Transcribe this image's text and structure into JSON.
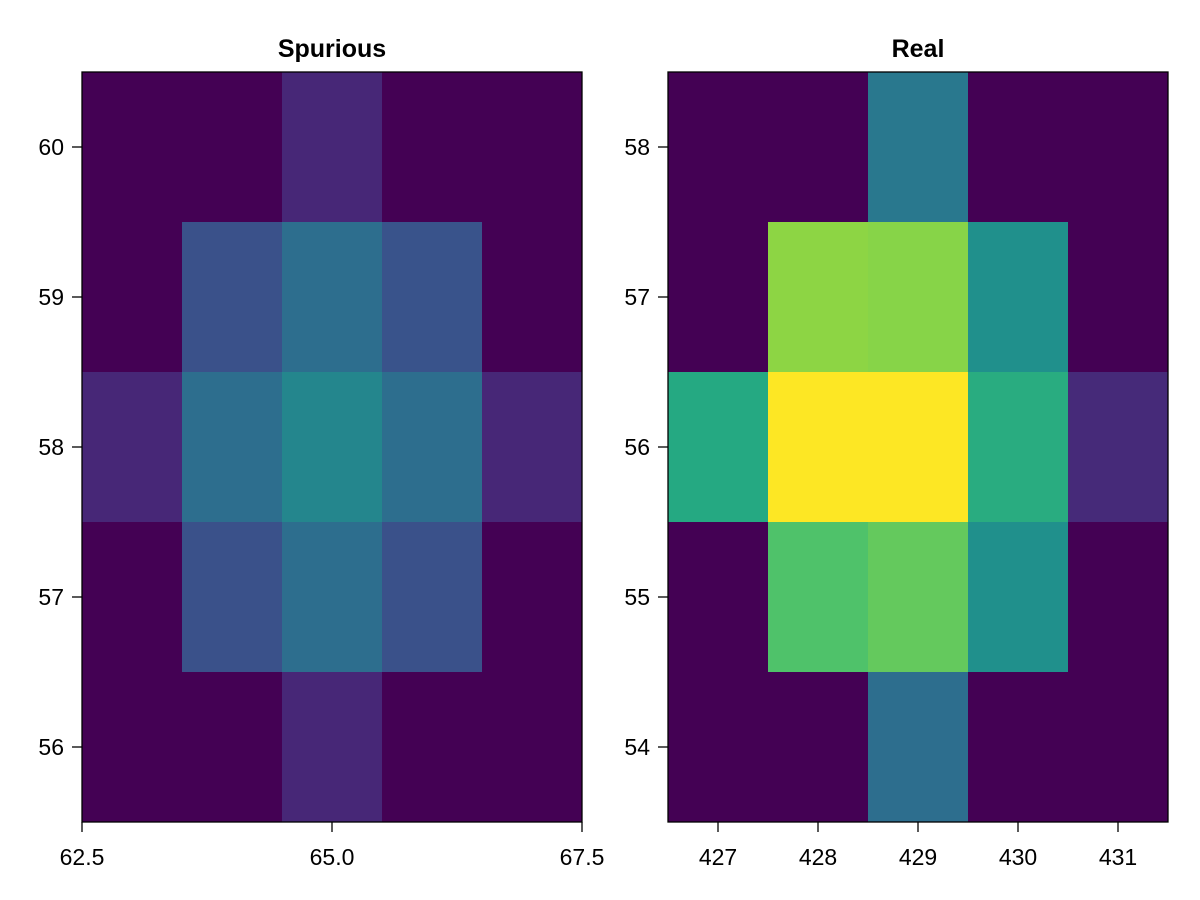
{
  "chart_data": [
    {
      "type": "heatmap",
      "title": "Spurious",
      "xlabel": "",
      "ylabel": "",
      "x_centers": [
        63,
        64,
        65,
        66,
        67
      ],
      "y_centers": [
        60,
        59,
        58,
        57,
        56
      ],
      "xlim": [
        62.5,
        67.5
      ],
      "ylim": [
        55.5,
        60.5
      ],
      "x_ticks": [
        62.5,
        65.0,
        67.5
      ],
      "x_tick_labels": [
        "62.5",
        "65.0",
        "67.5"
      ],
      "y_ticks": [
        56,
        57,
        58,
        59,
        60
      ],
      "y_tick_labels": [
        "56",
        "57",
        "58",
        "59",
        "60"
      ],
      "colormap": "viridis",
      "value_range": [
        0,
        1
      ],
      "z": [
        [
          0.0,
          0.0,
          0.11,
          0.0,
          0.0
        ],
        [
          0.0,
          0.25,
          0.36,
          0.26,
          0.0
        ],
        [
          0.11,
          0.36,
          0.46,
          0.36,
          0.11
        ],
        [
          0.0,
          0.25,
          0.36,
          0.25,
          0.0
        ],
        [
          0.0,
          0.0,
          0.11,
          0.0,
          0.0
        ]
      ],
      "grid": false
    },
    {
      "type": "heatmap",
      "title": "Real",
      "xlabel": "",
      "ylabel": "",
      "x_centers": [
        427,
        428,
        429,
        430,
        431
      ],
      "y_centers": [
        58,
        57,
        56,
        55,
        54
      ],
      "xlim": [
        426.5,
        431.5
      ],
      "ylim": [
        53.5,
        58.5
      ],
      "x_ticks": [
        427,
        428,
        429,
        430,
        431
      ],
      "x_tick_labels": [
        "427",
        "428",
        "429",
        "430",
        "431"
      ],
      "y_ticks": [
        54,
        55,
        56,
        57,
        58
      ],
      "y_tick_labels": [
        "54",
        "55",
        "56",
        "57",
        "58"
      ],
      "colormap": "viridis",
      "value_range": [
        0,
        1
      ],
      "z": [
        [
          0.0,
          0.0,
          0.4,
          0.0,
          0.0
        ],
        [
          0.0,
          0.83,
          0.82,
          0.5,
          0.0
        ],
        [
          0.61,
          1.0,
          1.0,
          0.62,
          0.12
        ],
        [
          0.0,
          0.72,
          0.76,
          0.5,
          0.0
        ],
        [
          0.0,
          0.0,
          0.36,
          0.0,
          0.0
        ]
      ],
      "grid": false
    }
  ]
}
